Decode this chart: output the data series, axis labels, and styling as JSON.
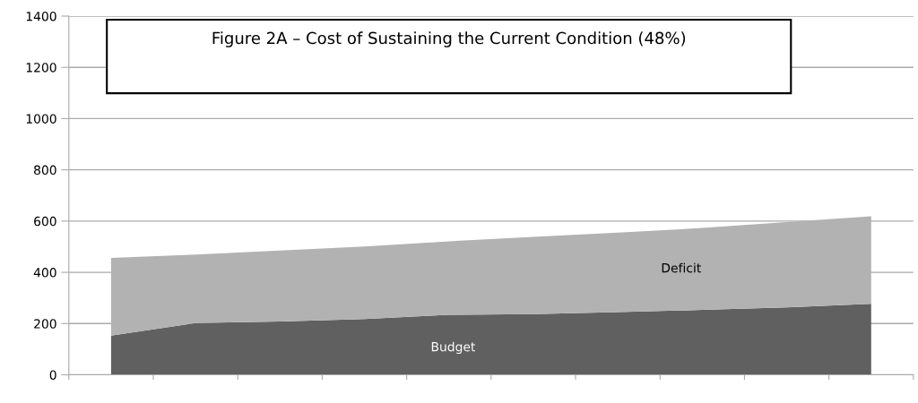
{
  "chart_data": {
    "type": "area",
    "stacked": true,
    "title": "Figure 2A – Cost of Sustaining the Current Condition (48%)",
    "categories": [
      null,
      null,
      null,
      null,
      null,
      null,
      null,
      null,
      null,
      null
    ],
    "series": [
      {
        "name": "Budget",
        "color": "#606060",
        "values": [
          153,
          202,
          208,
          218,
          234,
          237,
          245,
          253,
          263,
          277
        ]
      },
      {
        "name": "Deficit",
        "color": "#b2b2b2",
        "values": [
          303,
          267,
          277,
          283,
          287,
          301,
          310,
          320,
          333,
          342
        ]
      }
    ],
    "ylim": [
      0,
      1400
    ],
    "yticks": [
      0,
      200,
      400,
      600,
      800,
      1000,
      1200,
      1400
    ],
    "grid": "y"
  }
}
